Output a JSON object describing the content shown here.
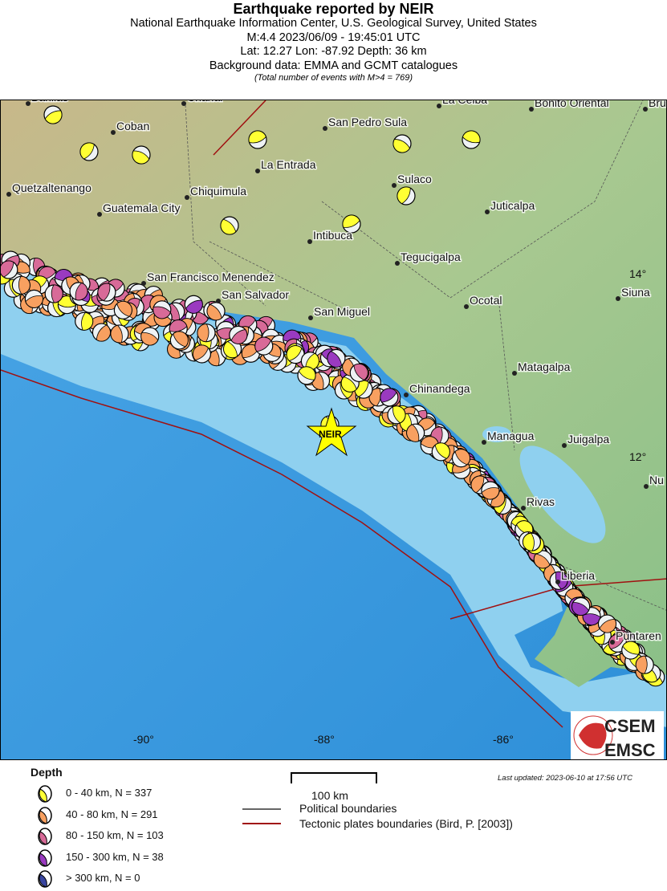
{
  "header": {
    "title": "Earthquake reported by NEIR",
    "agency": "National Earthquake Information Center, U.S. Geological Survey, United States",
    "magnitude_time": "M:4.4 2023/06/09 - 19:45:01 UTC",
    "location": "Lat: 12.27 Lon: -87.92 Depth: 36 km",
    "background": "Background data: EMMA and GCMT catalogues",
    "total": "(Total number of events with M>4 = 769)"
  },
  "map": {
    "epicenter_label": "NEIR",
    "lon_labels": [
      "-90°",
      "-88°",
      "-86°"
    ],
    "lat_labels": [
      "14°",
      "12°"
    ],
    "cities": [
      "Barillas",
      "Chahal",
      "La Ceiba",
      "Bonito Oriental",
      "Bru",
      "Coban",
      "San Pedro Sula",
      "La Entrada",
      "Quetzaltenango",
      "Chiquimula",
      "Sulaco",
      "Juticalpa",
      "Guatemala City",
      "Intibuca",
      "Tegucigalpa",
      "San Francisco Menendez",
      "San Salvador",
      "Siuna",
      "Ocotal",
      "San Miguel",
      "Matagalpa",
      "Chinandega",
      "Managua",
      "Juigalpa",
      "Nu",
      "Rivas",
      "Liberia",
      "Puntaren"
    ],
    "colors": {
      "ocean": "#3a9be0",
      "shelf": "#8fd0ef",
      "land": "#9cc48a",
      "plate_boundary": "#a01010",
      "political": "#555555"
    }
  },
  "logo": {
    "line1": "CSEM",
    "line2": "EMSC"
  },
  "legend": {
    "title": "Depth",
    "items": [
      {
        "label": "0 - 40 km, N = 337",
        "color": "#ffff33",
        "count": 337
      },
      {
        "label": "40 - 80 km, N = 291",
        "color": "#f8a060",
        "count": 291
      },
      {
        "label": "80 - 150 km, N = 103",
        "color": "#d86a98",
        "count": 103
      },
      {
        "label": "150 - 300 km, N = 38",
        "color": "#9a3ac0",
        "count": 38
      },
      {
        "label": "> 300 km, N = 0",
        "color": "#3a46a0",
        "count": 0
      }
    ],
    "scale": "100 km",
    "political": "Political boundaries",
    "tectonic": "Tectonic plates boundaries (Bird, P. [2003])"
  },
  "updated": "Last updated: 2023-06-10 at 17:56 UTC"
}
